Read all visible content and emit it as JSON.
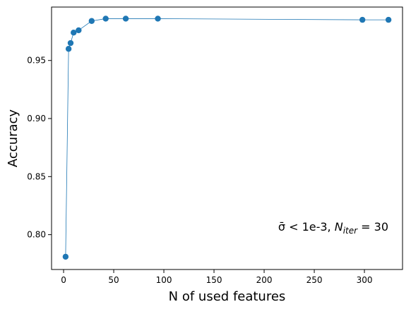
{
  "chart_data": {
    "type": "line",
    "x": [
      2,
      5,
      7,
      10,
      15,
      28,
      42,
      62,
      94,
      298,
      324
    ],
    "series": [
      {
        "values": [
          0.781,
          0.96,
          0.965,
          0.974,
          0.976,
          0.984,
          0.986,
          0.986,
          0.986,
          0.985,
          0.985
        ]
      }
    ],
    "xlabel": "N of used features",
    "ylabel": "Accuracy",
    "xlim": [
      -12,
      338
    ],
    "ylim": [
      0.77,
      0.996
    ],
    "xticks": [
      0,
      50,
      100,
      150,
      200,
      250,
      300
    ],
    "yticks": [
      0.8,
      0.85,
      0.9,
      0.95
    ],
    "xtick_labels": [
      "0",
      "50",
      "100",
      "150",
      "200",
      "250",
      "300"
    ],
    "ytick_labels": [
      "0.80",
      "0.85",
      "0.90",
      "0.95"
    ],
    "annotation": {
      "sigma_part": "σ̄ < 1e-3, ",
      "n_symbol": "N",
      "n_subscript": "iter",
      "n_rest": " = 30"
    },
    "line_color": "#1f77b4",
    "grid": false,
    "legend": "none"
  }
}
